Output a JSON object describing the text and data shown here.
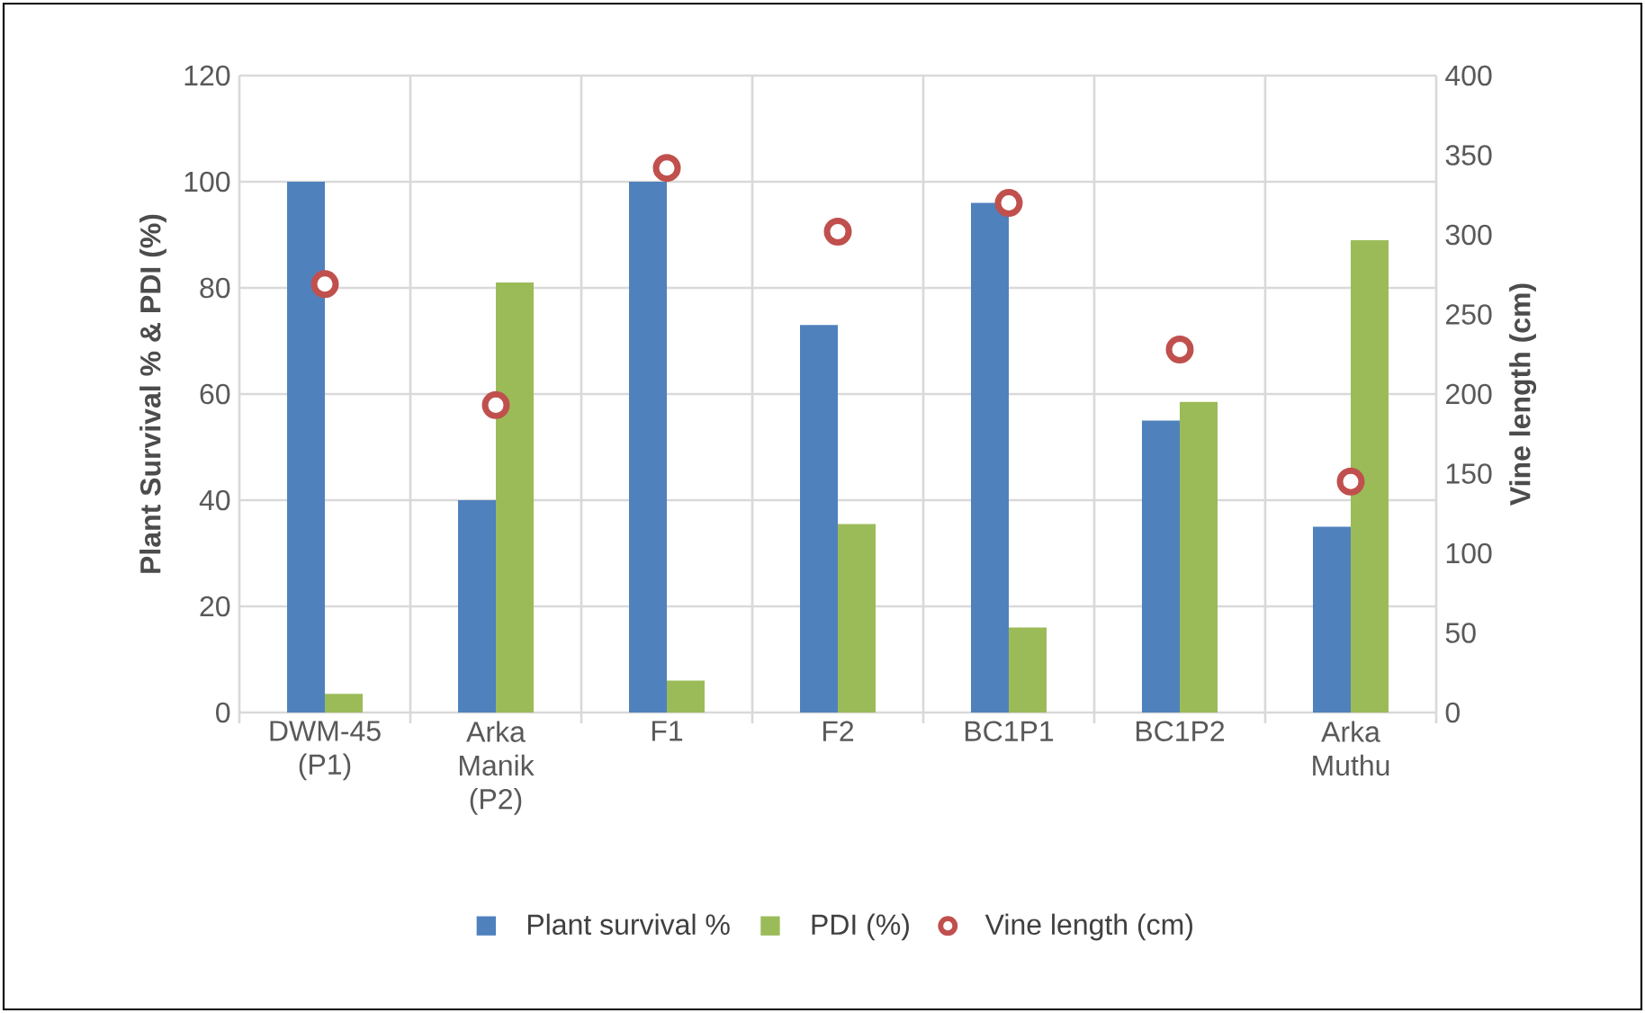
{
  "chart_data": {
    "type": "bar",
    "categories": [
      "DWM-45 (P1)",
      "Arka Manik (P2)",
      "F1",
      "F2",
      "BC1P1",
      "BC1P2",
      "Arka Muthu"
    ],
    "series": [
      {
        "name": "Plant survival %",
        "color": "#4f81bd",
        "values": [
          100,
          40,
          100,
          73,
          96,
          55,
          35
        ]
      },
      {
        "name": "PDI (%)",
        "color": "#9bbb59",
        "values": [
          3.5,
          81,
          6,
          35.5,
          16,
          58.5,
          89
        ]
      },
      {
        "name": "Vine length (cm)",
        "type": "scatter",
        "axis": "y2",
        "color": "#c0504d",
        "marker": "circle",
        "values": [
          269,
          193,
          342,
          302,
          320,
          228,
          145
        ]
      }
    ],
    "ylabel": "Plant Survival % & PDI (%)",
    "y2label": "Vine length (cm)",
    "ylim": [
      0,
      120
    ],
    "yticks": [
      0,
      20,
      40,
      60,
      80,
      100,
      120
    ],
    "y2lim": [
      0,
      400
    ],
    "y2ticks": [
      0,
      50,
      100,
      150,
      200,
      250,
      300,
      350,
      400
    ],
    "grid": true,
    "legend": "bottom"
  }
}
